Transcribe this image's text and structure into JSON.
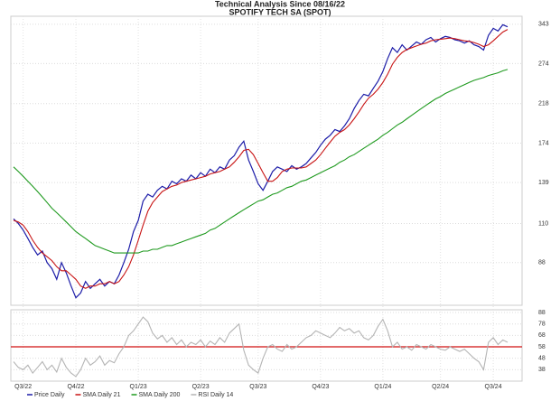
{
  "chart_data": [
    {
      "type": "line",
      "title": "Technical Analysis Since 08/16/22",
      "subtitle": "SPOTIFY TECH SA (SPOT)",
      "categories": [
        null,
        null,
        "Q3/22",
        null,
        null,
        null,
        null,
        null,
        null,
        null,
        null,
        null,
        null,
        "Q4/22",
        null,
        null,
        null,
        null,
        null,
        null,
        null,
        null,
        null,
        null,
        null,
        null,
        "Q1/23",
        null,
        null,
        null,
        null,
        null,
        null,
        null,
        null,
        null,
        null,
        null,
        null,
        "Q2/23",
        null,
        null,
        null,
        null,
        null,
        null,
        null,
        null,
        null,
        null,
        null,
        "Q3/23",
        null,
        null,
        null,
        null,
        null,
        null,
        null,
        null,
        null,
        null,
        null,
        null,
        "Q4/23",
        null,
        null,
        null,
        null,
        null,
        null,
        null,
        null,
        null,
        null,
        null,
        null,
        "Q1/24",
        null,
        null,
        null,
        null,
        null,
        null,
        null,
        null,
        null,
        null,
        null,
        "Q2/24",
        null,
        null,
        null,
        null,
        null,
        null,
        null,
        null,
        null,
        null,
        "Q3/24",
        null,
        null,
        null
      ],
      "series": [
        {
          "name": "Price Daily",
          "color": "#1c1ca8",
          "values": [
            113,
            110,
            106,
            101,
            96,
            92,
            94,
            88,
            85,
            80,
            88,
            83,
            77,
            72,
            74,
            79,
            76,
            78,
            80,
            77,
            79,
            78,
            82,
            88,
            95,
            105,
            112,
            125,
            130,
            128,
            133,
            136,
            134,
            140,
            138,
            142,
            140,
            145,
            142,
            147,
            144,
            150,
            147,
            152,
            150,
            158,
            162,
            170,
            176,
            158,
            148,
            138,
            133,
            140,
            148,
            152,
            150,
            148,
            153,
            150,
            152,
            155,
            160,
            165,
            172,
            178,
            182,
            188,
            186,
            192,
            200,
            212,
            222,
            230,
            228,
            238,
            248,
            262,
            282,
            300,
            292,
            305,
            296,
            303,
            310,
            306,
            314,
            318,
            310,
            316,
            320,
            318,
            314,
            312,
            308,
            312,
            305,
            302,
            296,
            322,
            335,
            330,
            342,
            338
          ]
        },
        {
          "name": "SMA Daily 21",
          "color": "#c81414",
          "values": [
            112,
            111,
            109,
            105,
            100,
            96,
            93,
            91,
            89,
            86,
            84,
            84,
            82,
            80,
            77,
            76,
            77,
            77,
            78,
            78,
            79,
            78,
            79,
            82,
            86,
            92,
            100,
            109,
            118,
            124,
            128,
            132,
            134,
            136,
            137,
            139,
            140,
            141,
            142,
            143,
            144,
            146,
            147,
            148,
            150,
            152,
            156,
            161,
            167,
            168,
            163,
            155,
            147,
            140,
            140,
            143,
            148,
            150,
            151,
            151,
            151,
            152,
            155,
            158,
            163,
            169,
            175,
            181,
            185,
            188,
            193,
            200,
            208,
            217,
            225,
            230,
            237,
            246,
            258,
            273,
            284,
            292,
            297,
            300,
            303,
            306,
            308,
            312,
            314,
            315,
            316,
            317,
            316,
            314,
            312,
            311,
            309,
            306,
            302,
            305,
            312,
            320,
            328,
            333
          ]
        },
        {
          "name": "SMA Daily 200",
          "color": "#1f9a1f",
          "values": [
            152,
            148,
            144,
            140,
            136,
            132,
            128,
            124,
            120,
            117,
            114,
            111,
            108,
            105,
            103,
            101,
            99,
            97,
            96,
            95,
            94,
            93,
            93,
            93,
            93,
            93,
            93,
            94,
            94,
            95,
            95,
            96,
            97,
            97,
            98,
            99,
            100,
            101,
            102,
            103,
            104,
            106,
            107,
            109,
            111,
            113,
            115,
            117,
            119,
            121,
            123,
            125,
            126,
            128,
            130,
            131,
            133,
            135,
            136,
            138,
            140,
            141,
            143,
            145,
            147,
            149,
            151,
            153,
            156,
            158,
            161,
            163,
            166,
            169,
            172,
            175,
            178,
            182,
            185,
            189,
            193,
            196,
            200,
            204,
            208,
            212,
            216,
            220,
            224,
            227,
            231,
            234,
            237,
            240,
            243,
            246,
            249,
            251,
            253,
            256,
            258,
            260,
            263,
            265
          ]
        }
      ],
      "ylim": [
        69,
        359
      ],
      "yticks": [
        88,
        110,
        139,
        174,
        218,
        274,
        343
      ],
      "log_scale": true,
      "grid": true
    },
    {
      "type": "line",
      "series": [
        {
          "name": "RSI Daily 14",
          "color": "#b4b4b4",
          "values": [
            45,
            40,
            38,
            42,
            35,
            40,
            45,
            38,
            42,
            36,
            48,
            40,
            35,
            32,
            38,
            48,
            42,
            45,
            50,
            42,
            46,
            44,
            52,
            58,
            68,
            72,
            78,
            84,
            80,
            70,
            65,
            68,
            62,
            66,
            60,
            64,
            58,
            62,
            60,
            64,
            58,
            63,
            60,
            66,
            62,
            70,
            74,
            78,
            55,
            42,
            38,
            35,
            48,
            58,
            60,
            56,
            54,
            60,
            56,
            58,
            62,
            66,
            68,
            72,
            70,
            68,
            66,
            70,
            75,
            72,
            74,
            70,
            72,
            66,
            64,
            68,
            76,
            82,
            72,
            58,
            62,
            56,
            58,
            55,
            60,
            58,
            56,
            60,
            58,
            56,
            55,
            58,
            56,
            54,
            56,
            52,
            48,
            45,
            38,
            62,
            66,
            60,
            64,
            62
          ]
        }
      ],
      "ylim": [
        28,
        90.4
      ],
      "yticks": [
        38,
        48,
        58,
        68,
        78,
        88
      ],
      "grid": true,
      "reference_line": {
        "value": 58,
        "color": "#d01010"
      }
    }
  ]
}
